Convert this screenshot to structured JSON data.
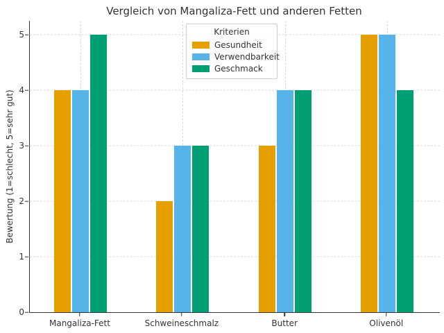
{
  "chart_data": {
    "type": "bar",
    "title": "Vergleich von Mangaliza-Fett und anderen Fetten",
    "xlabel": "",
    "ylabel": "Bewertung (1=schlecht, 5=sehr gut)",
    "categories": [
      "Mangaliza-Fett",
      "Schweineschmalz",
      "Butter",
      "Olivenöl"
    ],
    "series": [
      {
        "name": "Gesundheit",
        "color": "#E69F00",
        "values": [
          4,
          2,
          3,
          5
        ]
      },
      {
        "name": "Verwendbarkeit",
        "color": "#56B4E9",
        "values": [
          4,
          3,
          4,
          5
        ]
      },
      {
        "name": "Geschmack",
        "color": "#009E73",
        "values": [
          5,
          3,
          4,
          4
        ]
      }
    ],
    "legend": {
      "title": "Kriterien",
      "position": "upper center"
    },
    "ylim": [
      0,
      5.25
    ],
    "yticks": [
      0,
      1,
      2,
      3,
      4,
      5
    ],
    "grid": true,
    "grid_style": "dashed"
  },
  "colors": {
    "text": "#333333",
    "spine": "#333333",
    "grid": "#d9d9d9",
    "legend_border": "#cccccc",
    "background": "#ffffff"
  }
}
